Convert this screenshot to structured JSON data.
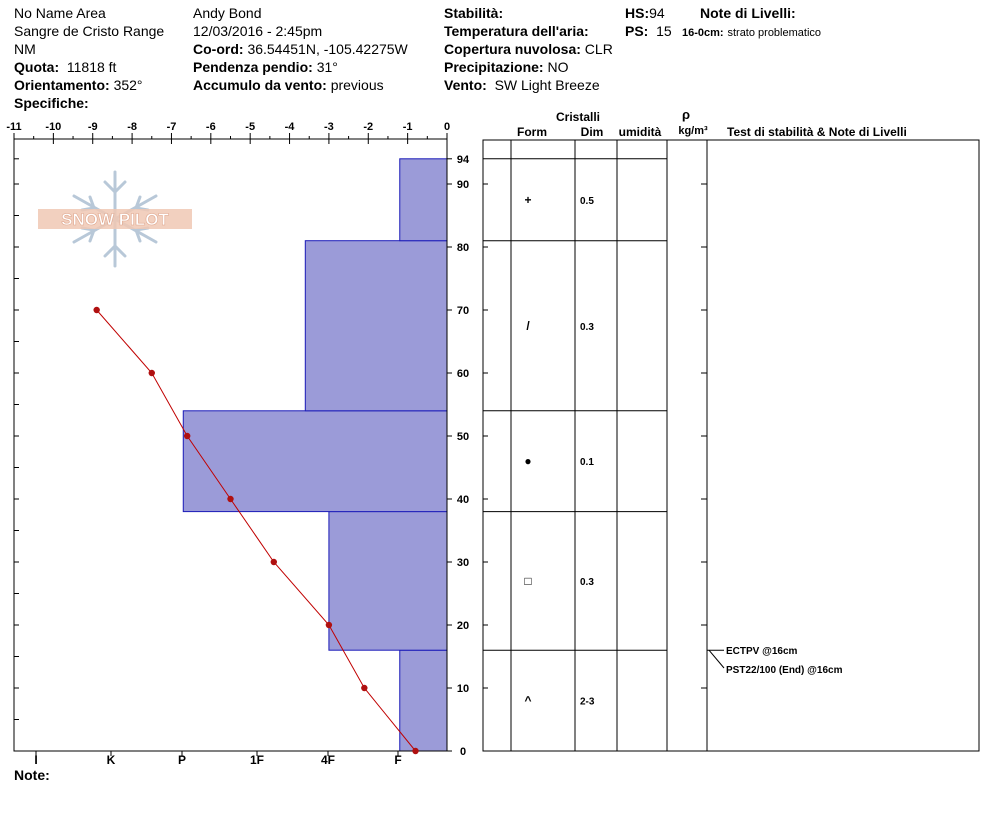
{
  "header": {
    "col1": {
      "area": "No Name Area",
      "range": "Sangre de Cristo Range",
      "state": "NM",
      "elevation_label": "Quota:",
      "elevation": "11818 ft",
      "aspect_label": "Orientamento:",
      "aspect": "352°",
      "specifics_label": "Specifiche:"
    },
    "col2": {
      "observer": "Andy Bond",
      "datetime": "12/03/2016 - 2:45pm",
      "coord_label": "Co-ord:",
      "coord": "36.54451N, -105.42275W",
      "slope_label": "Pendenza pendio:",
      "slope": "31°",
      "wind_load_label": "Accumulo da vento:",
      "wind_load": "previous"
    },
    "col3": {
      "stability_label": "Stabilità:",
      "air_temp_label": "Temperatura dell'aria:",
      "cloud_label": "Copertura nuvolosa:",
      "cloud": "CLR",
      "precip_label": "Precipitazione:",
      "precip": "NO",
      "wind_label": "Vento:",
      "wind": "SW Light Breeze"
    },
    "col4": {
      "hs_label": "HS:",
      "hs": "94",
      "ps_label": "PS:",
      "ps": "15"
    },
    "col5": {
      "notes_label": "Note di Livelli:",
      "note_depth": "16-0cm:",
      "note_text": "strato problematico"
    }
  },
  "chart_data": {
    "type": "snow_profile",
    "temp_axis": {
      "ticks": [
        "-11",
        "-10",
        "-9",
        "-8",
        "-7",
        "-6",
        "-5",
        "-4",
        "-3",
        "-2",
        "-1",
        "0"
      ],
      "range": [
        -11,
        0
      ]
    },
    "height_axis": {
      "ticks": [
        "0",
        "10",
        "20",
        "30",
        "40",
        "50",
        "60",
        "70",
        "80",
        "90",
        "94"
      ],
      "range": [
        0,
        94
      ]
    },
    "hardness_labels": [
      "I",
      "K",
      "P",
      "1F",
      "4F",
      "F"
    ],
    "hardness_layers": [
      {
        "bottom": 0,
        "top": 16,
        "hardness": -1.2
      },
      {
        "bottom": 16,
        "top": 38,
        "hardness": -3.0
      },
      {
        "bottom": 38,
        "top": 54,
        "hardness": -6.7
      },
      {
        "bottom": 54,
        "top": 81,
        "hardness": -3.6
      },
      {
        "bottom": 81,
        "top": 94,
        "hardness": -1.2
      }
    ],
    "temperature_profile": [
      {
        "height": 70,
        "temp": -8.9
      },
      {
        "height": 60,
        "temp": -7.5
      },
      {
        "height": 50,
        "temp": -6.6
      },
      {
        "height": 40,
        "temp": -5.5
      },
      {
        "height": 30,
        "temp": -4.4
      },
      {
        "height": 20,
        "temp": -3.0
      },
      {
        "height": 10,
        "temp": -2.1
      },
      {
        "height": 0,
        "temp": -0.8
      }
    ],
    "table_headers": {
      "cristalli": "Cristalli",
      "form": "Form",
      "dim": "Dim",
      "umidita": "umidità",
      "rho": "ρ",
      "rho_unit": "kg/m³",
      "tests": "Test di stabilità & Note di Livelli"
    },
    "layers": [
      {
        "bottom": 81,
        "top": 94,
        "form": "+",
        "dim": "0.5"
      },
      {
        "bottom": 54,
        "top": 81,
        "form": "/",
        "dim": "0.3"
      },
      {
        "bottom": 38,
        "top": 54,
        "form": "●",
        "dim": "0.1"
      },
      {
        "bottom": 16,
        "top": 38,
        "form": "□",
        "dim": "0.3"
      },
      {
        "bottom": 0,
        "top": 16,
        "form": "^",
        "dim": "2-3"
      }
    ],
    "tests": [
      {
        "height": 16,
        "label": "ECTPV @16cm"
      },
      {
        "height": 16,
        "label": "PST22/100 (End) @16cm"
      }
    ],
    "logo_text": "SNOW PILOT",
    "note_label": "Note:"
  },
  "colors": {
    "hardness_fill": "#9b9bd8",
    "hardness_stroke": "#1b1bb8",
    "temp_line": "#c00000",
    "temp_point": "#b01010",
    "logo": "#e8b8a0",
    "snowflake": "#b8c8d8"
  }
}
